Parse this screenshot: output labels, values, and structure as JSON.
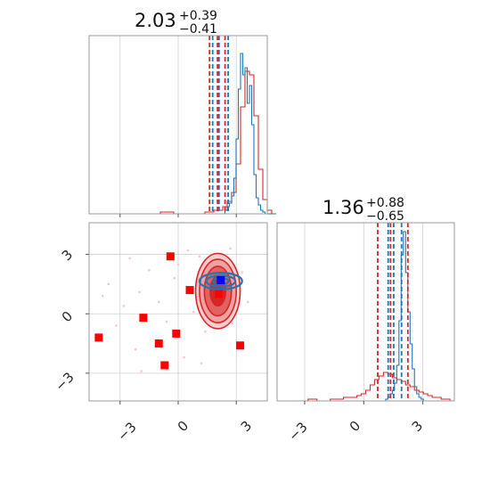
{
  "chart_data": {
    "type": "corner",
    "grid": true,
    "colors": {
      "red": "#d62728",
      "blue": "#1f77b4",
      "red_marker": "#ff0000",
      "blue_marker": "#0000ff"
    },
    "params": [
      {
        "title": {
          "value": "2.03",
          "plus": "+0.39",
          "minus": "−0.41"
        },
        "xlim": [
          -4.6,
          4.6
        ],
        "quantiles_red": [
          1.62,
          2.03,
          2.42
        ],
        "quantiles_blue": [
          1.78,
          2.11,
          2.58
        ]
      },
      {
        "title": {
          "value": "1.36",
          "plus": "+0.88",
          "minus": "−0.65"
        },
        "xlim": [
          -4.4,
          4.6
        ],
        "quantiles_red": [
          0.71,
          1.36,
          2.24
        ],
        "quantiles_blue": [
          1.24,
          1.52,
          1.92
        ]
      }
    ],
    "ticks": [
      -3,
      0,
      3
    ],
    "tick_labels": [
      "−3",
      "0",
      "3"
    ],
    "hist1_red": {
      "edges_start": -4.6,
      "bin_width": 0.23,
      "heights": [
        0,
        0,
        0,
        0,
        0,
        0,
        0,
        0,
        0,
        0,
        0,
        0,
        0,
        0,
        0,
        0,
        0.01,
        0.01,
        0.01,
        0,
        0,
        0,
        0,
        0,
        0,
        0,
        0.01,
        0.01,
        0.02,
        0.02,
        0.04,
        0.07,
        0.12,
        0.28,
        0.6,
        0.8,
        0.78,
        0.55,
        0.25,
        0.08,
        0.02,
        0
      ]
    },
    "hist1_blue": {
      "edges_start": -4.6,
      "bin_width": 0.115,
      "heights": [
        0,
        0,
        0,
        0,
        0,
        0,
        0,
        0,
        0,
        0,
        0,
        0,
        0,
        0,
        0,
        0,
        0,
        0,
        0,
        0,
        0,
        0,
        0,
        0,
        0,
        0,
        0,
        0,
        0,
        0,
        0,
        0,
        0,
        0,
        0,
        0,
        0,
        0,
        0,
        0,
        0,
        0,
        0,
        0,
        0,
        0,
        0,
        0,
        0,
        0,
        0,
        0,
        0,
        0,
        0,
        0,
        0,
        0,
        0,
        0,
        0,
        0.02,
        0.04,
        0.06,
        0.1,
        0.2,
        0.42,
        0.7,
        0.9,
        0.78,
        0.82,
        0.62,
        0.72,
        0.5,
        0.22,
        0.09,
        0.05,
        0.02,
        0.01,
        0,
        0,
        0,
        0,
        0
      ]
    },
    "hist2_red": {
      "edges_start": -4.4,
      "bin_width": 0.225,
      "heights": [
        0,
        0,
        0,
        0,
        0,
        0,
        0,
        0.01,
        0.01,
        0,
        0,
        0,
        0.01,
        0.01,
        0.01,
        0.02,
        0.02,
        0.02,
        0.03,
        0.04,
        0.06,
        0.09,
        0.12,
        0.14,
        0.16,
        0.15,
        0.13,
        0.12,
        0.11,
        0.09,
        0.08,
        0.06,
        0.05,
        0.04,
        0.03,
        0.02,
        0.02,
        0.01,
        0.01,
        0
      ]
    },
    "hist2_blue": {
      "edges_start": -4.4,
      "bin_width": 0.1125,
      "heights": [
        0,
        0,
        0,
        0,
        0,
        0,
        0,
        0,
        0,
        0,
        0,
        0,
        0,
        0,
        0,
        0,
        0,
        0,
        0,
        0,
        0,
        0,
        0,
        0,
        0,
        0,
        0,
        0,
        0,
        0,
        0,
        0,
        0,
        0,
        0,
        0,
        0,
        0,
        0,
        0,
        0,
        0,
        0,
        0,
        0,
        0,
        0,
        0,
        0,
        0.01,
        0.02,
        0.04,
        0.06,
        0.1,
        0.2,
        0.45,
        0.82,
        0.95,
        0.72,
        0.5,
        0.32,
        0.18,
        0.08,
        0.04,
        0.02,
        0.01,
        0,
        0,
        0,
        0,
        0,
        0,
        0,
        0,
        0,
        0,
        0,
        0,
        0,
        0
      ]
    },
    "red_squares": [
      [
        -4.1,
        -1.2
      ],
      [
        -1.8,
        -0.2
      ],
      [
        -0.4,
        2.9
      ],
      [
        -1.0,
        -1.5
      ],
      [
        -0.1,
        -1.0
      ],
      [
        -0.7,
        -2.6
      ],
      [
        0.6,
        1.2
      ],
      [
        3.2,
        -1.6
      ],
      [
        2.1,
        1.0
      ]
    ],
    "blue_squares": [
      [
        2.2,
        1.7
      ]
    ],
    "red_contours": [
      {
        "cx": 2.05,
        "cy": 1.15,
        "rx": 1.15,
        "ry": 1.9,
        "fill": "#f7c8c8",
        "opacity": 0.9
      },
      {
        "cx": 2.05,
        "cy": 1.15,
        "rx": 0.95,
        "ry": 1.6,
        "fill": "#ef9a9a",
        "opacity": 0.85
      },
      {
        "cx": 2.05,
        "cy": 1.15,
        "rx": 0.7,
        "ry": 1.25,
        "fill": "#e05a5a",
        "opacity": 0.9
      },
      {
        "cx": 2.05,
        "cy": 1.15,
        "rx": 0.4,
        "ry": 0.75,
        "fill": "#d62728",
        "opacity": 1
      }
    ],
    "blue_contours": [
      {
        "cx": 2.2,
        "cy": 1.65,
        "rx": 1.1,
        "ry": 0.42
      },
      {
        "cx": 2.2,
        "cy": 1.65,
        "rx": 0.75,
        "ry": 0.28
      },
      {
        "cx": 2.2,
        "cy": 1.65,
        "rx": 0.4,
        "ry": 0.15
      }
    ],
    "scatter_pink": [
      [
        -3.6,
        1.5
      ],
      [
        -2.8,
        0.4
      ],
      [
        -2.2,
        -1.8
      ],
      [
        -1.5,
        2.2
      ],
      [
        -1.0,
        0.6
      ],
      [
        -0.6,
        -0.4
      ],
      [
        -0.2,
        1.8
      ],
      [
        0.3,
        -2.2
      ],
      [
        0.8,
        0.1
      ],
      [
        1.1,
        2.9
      ],
      [
        1.4,
        -0.9
      ],
      [
        -3.2,
        -0.6
      ],
      [
        -2.5,
        2.8
      ],
      [
        -1.9,
        -2.9
      ],
      [
        0.0,
        2.5
      ],
      [
        2.8,
        -0.5
      ],
      [
        3.3,
        2.1
      ],
      [
        3.6,
        0.6
      ],
      [
        -0.9,
        -1.7
      ],
      [
        0.5,
        3.2
      ],
      [
        -2.0,
        1.1
      ],
      [
        1.2,
        -2.5
      ],
      [
        2.7,
        3.3
      ],
      [
        -3.9,
        0.9
      ]
    ]
  }
}
